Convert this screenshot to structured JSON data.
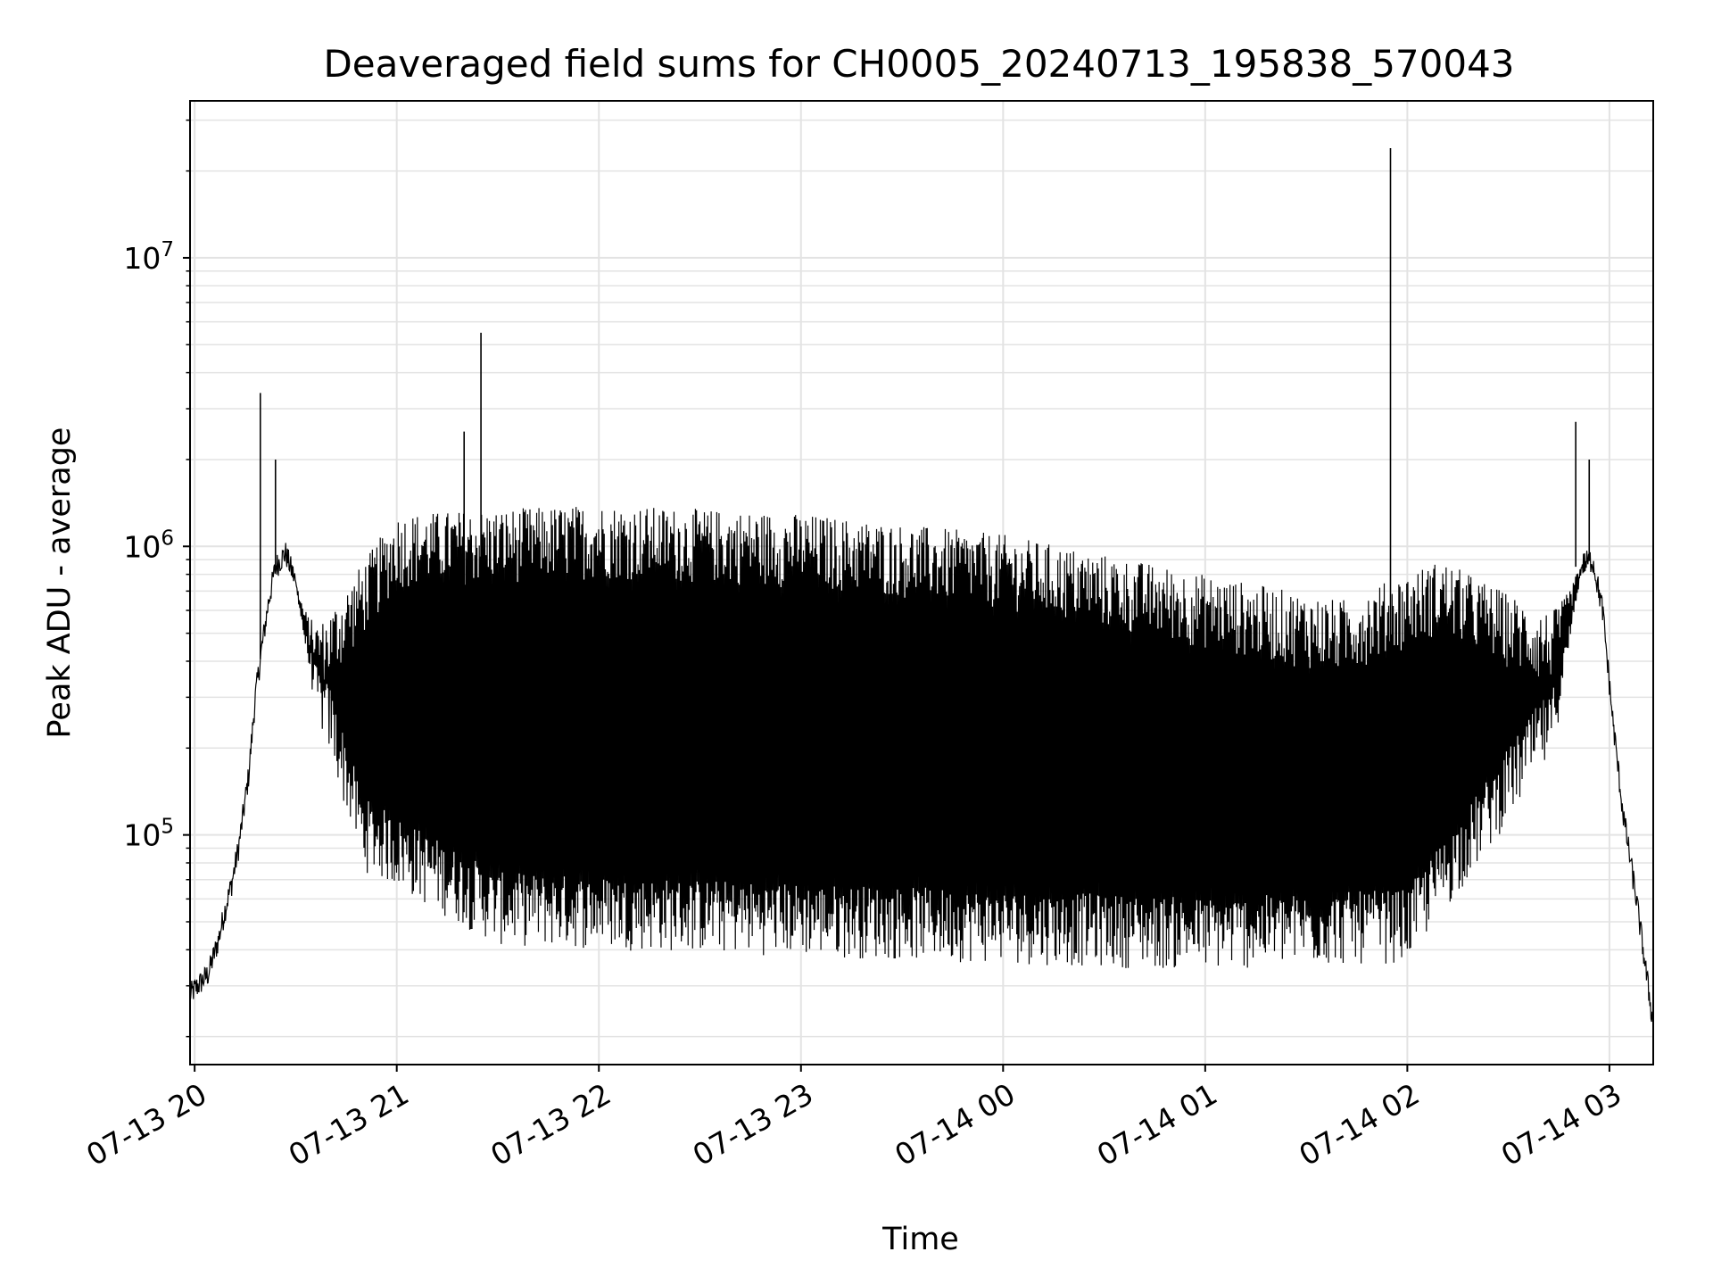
{
  "chart_data": {
    "type": "line",
    "title": "Deaveraged field sums for CH0005_20240713_195838_570043",
    "xlabel": "Time",
    "ylabel": "Peak ADU - average",
    "x_axis_type": "datetime",
    "y_scale": "log",
    "xlim": [
      "2024-07-13T19:58:38",
      "2024-07-14T03:13:00"
    ],
    "ylim": [
      16000,
      35000000
    ],
    "grid": true,
    "line_color": "#000000",
    "grid_color": "#e3e3e3",
    "x_ticks": [
      {
        "value": "2024-07-13T20:00:00",
        "label": "07-13 20"
      },
      {
        "value": "2024-07-13T21:00:00",
        "label": "07-13 21"
      },
      {
        "value": "2024-07-13T22:00:00",
        "label": "07-13 22"
      },
      {
        "value": "2024-07-13T23:00:00",
        "label": "07-13 23"
      },
      {
        "value": "2024-07-14T00:00:00",
        "label": "07-14 00"
      },
      {
        "value": "2024-07-14T01:00:00",
        "label": "07-14 01"
      },
      {
        "value": "2024-07-14T02:00:00",
        "label": "07-14 02"
      },
      {
        "value": "2024-07-14T03:00:00",
        "label": "07-14 03"
      }
    ],
    "y_ticks": [
      {
        "value": 100000,
        "base": "10",
        "exp": "5"
      },
      {
        "value": 1000000,
        "base": "10",
        "exp": "6"
      },
      {
        "value": 10000000,
        "base": "10",
        "exp": "7"
      }
    ],
    "series": [
      {
        "x": [
          "2024-07-13T19:58:38",
          "2024-07-13T20:04:00",
          "2024-07-13T20:07:00",
          "2024-07-13T20:09:00",
          "2024-07-13T20:11:00",
          "2024-07-13T20:13:00",
          "2024-07-13T20:16:00",
          "2024-07-13T20:18:00",
          "2024-07-13T20:20:00",
          "2024-07-13T20:22:00",
          "2024-07-13T20:24:00",
          "2024-07-13T20:27:00",
          "2024-07-13T20:40:00",
          "2024-07-13T21:30:00",
          "2024-07-13T22:00:00",
          "2024-07-13T22:30:00",
          "2024-07-13T23:00:00",
          "2024-07-13T23:30:00",
          "2024-07-14T00:00:00",
          "2024-07-14T00:30:00",
          "2024-07-14T01:00:00",
          "2024-07-14T01:30:00",
          "2024-07-14T02:00:00",
          "2024-07-14T02:20:00",
          "2024-07-14T02:40:00",
          "2024-07-14T02:45:00",
          "2024-07-14T02:50:00",
          "2024-07-14T02:55:00",
          "2024-07-14T02:58:00",
          "2024-07-14T03:01:00",
          "2024-07-14T03:04:00",
          "2024-07-14T03:08:00",
          "2024-07-14T03:13:00"
        ],
        "y": [
          28000,
          33000,
          43000,
          55000,
          68000,
          90000,
          160000,
          300000,
          450000,
          650000,
          850000,
          950000,
          350000,
          800000,
          900000,
          850000,
          750000,
          600000,
          450000,
          350000,
          250000,
          200000,
          200000,
          300000,
          500000,
          700000,
          850000,
          900000,
          600000,
          250000,
          120000,
          60000,
          22000
        ],
        "noise": {
          "range": [
            "2024-07-13T20:30:00",
            "2024-07-14T02:52:00"
          ],
          "low": [
            {
              "x": "2024-07-13T20:40:00",
              "y": 250000
            },
            {
              "x": "2024-07-13T20:50:00",
              "y": 100000
            },
            {
              "x": "2024-07-13T21:30:00",
              "y": 55000
            },
            {
              "x": "2024-07-14T01:00:00",
              "y": 45000
            },
            {
              "x": "2024-07-14T02:00:00",
              "y": 48000
            },
            {
              "x": "2024-07-14T02:20:00",
              "y": 100000
            },
            {
              "x": "2024-07-14T02:40:00",
              "y": 220000
            }
          ],
          "high": [
            {
              "x": "2024-07-13T20:40:00",
              "y": 600000
            },
            {
              "x": "2024-07-13T21:00:00",
              "y": 1300000
            },
            {
              "x": "2024-07-13T22:00:00",
              "y": 1400000
            },
            {
              "x": "2024-07-13T23:00:00",
              "y": 1300000
            },
            {
              "x": "2024-07-14T00:00:00",
              "y": 1100000
            },
            {
              "x": "2024-07-14T01:00:00",
              "y": 800000
            },
            {
              "x": "2024-07-14T01:40:00",
              "y": 650000
            },
            {
              "x": "2024-07-14T02:10:00",
              "y": 900000
            },
            {
              "x": "2024-07-14T02:40:00",
              "y": 600000
            }
          ]
        },
        "spikes": [
          {
            "x": "2024-07-13T20:19:30",
            "y": 3400000
          },
          {
            "x": "2024-07-13T20:24:00",
            "y": 2000000
          },
          {
            "x": "2024-07-13T21:20:00",
            "y": 2500000
          },
          {
            "x": "2024-07-13T21:25:00",
            "y": 5500000
          },
          {
            "x": "2024-07-14T01:55:00",
            "y": 24000000
          },
          {
            "x": "2024-07-14T02:50:00",
            "y": 2700000
          },
          {
            "x": "2024-07-14T02:54:00",
            "y": 2000000
          }
        ]
      }
    ]
  }
}
